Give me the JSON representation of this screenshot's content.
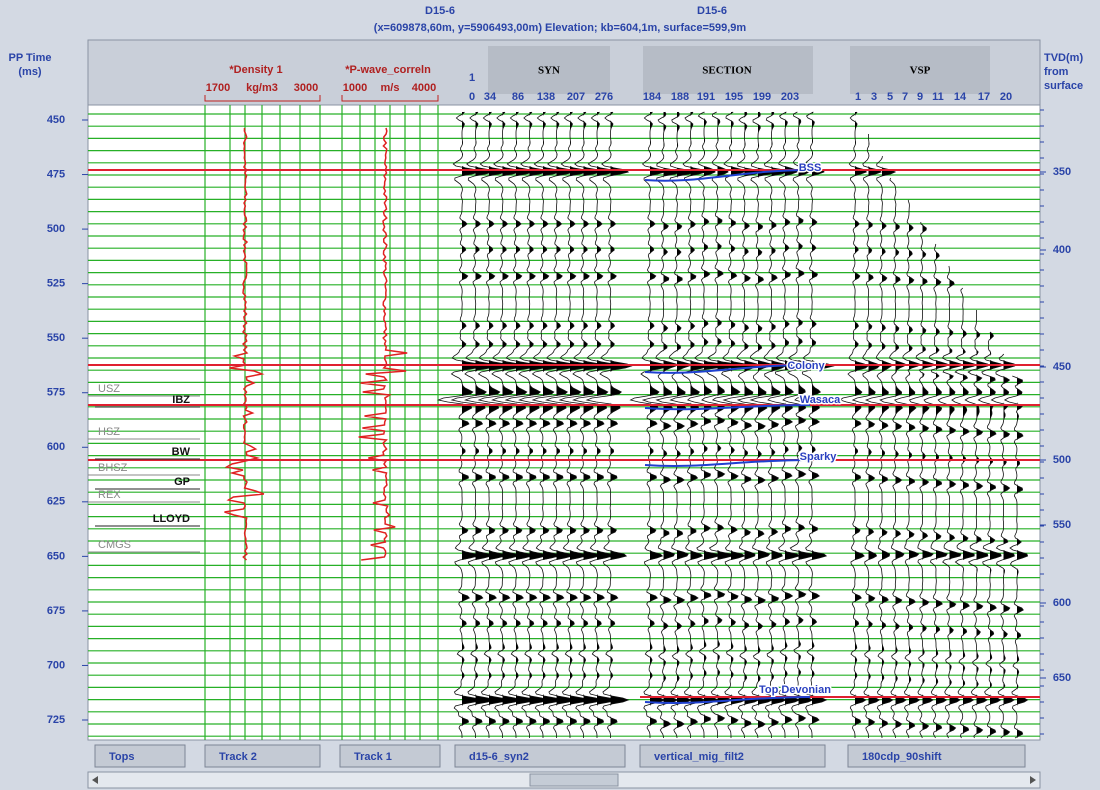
{
  "header": {
    "well_left": "D15-6",
    "well_right": "D15-6",
    "location": "(x=609878,60m, y=5906493,00m) Elevation; kb=604,1m, surface=599,9m"
  },
  "left_axis": {
    "title": [
      "PP Time",
      "(ms)"
    ],
    "ticks": [
      450,
      475,
      500,
      525,
      550,
      575,
      600,
      625,
      650,
      675,
      700,
      725
    ]
  },
  "right_axis": {
    "title": [
      "TVD(m)",
      "from",
      "surface"
    ],
    "ticks": [
      350,
      400,
      450,
      500,
      550,
      600,
      650
    ]
  },
  "density": {
    "name": "*Density 1",
    "min": 1700,
    "unit": "kg/m3",
    "max": 3000
  },
  "pwave": {
    "name": "*P-wave_correln",
    "min": 1000,
    "unit": "m/s",
    "max": 4000
  },
  "panels": {
    "syn": "SYN",
    "section": "SECTION",
    "vsp": "VSP"
  },
  "syn_trace_top": [
    1
  ],
  "syn_traces": [
    0,
    34,
    86,
    138,
    207,
    276
  ],
  "section_traces": [
    184,
    188,
    191,
    195,
    199,
    203
  ],
  "vsp_traces": [
    1,
    3,
    5,
    7,
    9,
    11,
    14,
    17,
    20
  ],
  "tops": [
    "USZ",
    "IBZ",
    "HSZ",
    "BW",
    "BHSZ",
    "GP",
    "REX",
    "LLOYD",
    "CMGS"
  ],
  "horizons": [
    "BSS",
    "Colony",
    "Wasaca",
    "Sparky",
    "Top Devonian"
  ],
  "buttons": [
    "Tops",
    "Track 2",
    "Track 1",
    "d15-6_syn2",
    "vertical_mig_filt2",
    "180cdp_90shift"
  ]
}
